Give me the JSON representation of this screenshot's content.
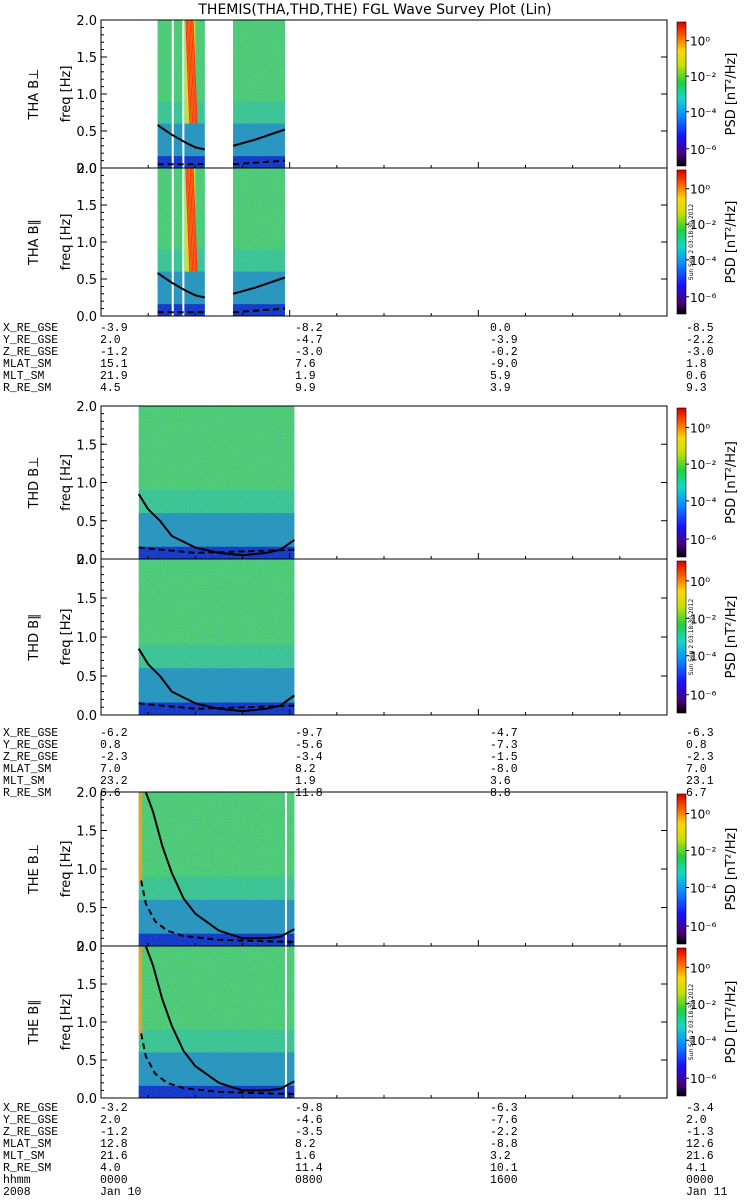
{
  "title": "THEMIS(THA,THD,THE) FGL Wave Survey Plot (Lin)",
  "colorbar": {
    "label": "PSD [nT²/Hz]",
    "ticks": [
      "10⁰",
      "10⁻²",
      "10⁻⁴",
      "10⁻⁶"
    ],
    "stamp": "Sun Sep 2 03:18:30 2012"
  },
  "panels": [
    {
      "id": "tha-bperp",
      "ylabel": "THA B⊥",
      "yunit": "freq [Hz]"
    },
    {
      "id": "tha-bpar",
      "ylabel": "THA B∥",
      "yunit": "freq [Hz]"
    },
    {
      "id": "thd-bperp",
      "ylabel": "THD B⊥",
      "yunit": "freq [Hz]"
    },
    {
      "id": "thd-bpar",
      "ylabel": "THD B∥",
      "yunit": "freq [Hz]"
    },
    {
      "id": "the-bperp",
      "ylabel": "THE B⊥",
      "yunit": "freq [Hz]"
    },
    {
      "id": "the-bpar",
      "ylabel": "THE B∥",
      "yunit": "freq [Hz]"
    }
  ],
  "yticks": [
    "2.0",
    "1.5",
    "1.0",
    "0.5",
    "0.0"
  ],
  "ephemeris": [
    {
      "rows": [
        [
          "X_RE_GSE",
          "-3.9",
          "-8.2",
          "0.0",
          "-8.5"
        ],
        [
          "Y_RE_GSE",
          "2.0",
          "-4.7",
          "-3.9",
          "-2.2"
        ],
        [
          "Z_RE_GSE",
          "-1.2",
          "-3.0",
          "-0.2",
          "-3.0"
        ],
        [
          "MLAT_SM",
          "15.1",
          "7.6",
          "-9.0",
          "1.8"
        ],
        [
          "MLT_SM",
          "21.9",
          "1.9",
          "5.9",
          "0.6"
        ],
        [
          "R_RE_SM",
          "4.5",
          "9.9",
          "3.9",
          "9.3"
        ]
      ]
    },
    {
      "rows": [
        [
          "X_RE_GSE",
          "-6.2",
          "-9.7",
          "-4.7",
          "-6.3"
        ],
        [
          "Y_RE_GSE",
          "0.8",
          "-5.6",
          "-7.3",
          "0.8"
        ],
        [
          "Z_RE_GSE",
          "-2.3",
          "-3.4",
          "-1.5",
          "-2.3"
        ],
        [
          "MLAT_SM",
          "7.0",
          "8.2",
          "-8.0",
          "7.0"
        ],
        [
          "MLT_SM",
          "23.2",
          "1.9",
          "3.6",
          "23.1"
        ],
        [
          "R_RE_SM",
          "6.6",
          "11.8",
          "8.8",
          "6.7"
        ]
      ]
    },
    {
      "rows": [
        [
          "X_RE_GSE",
          "-3.2",
          "-9.8",
          "-6.3",
          "-3.4"
        ],
        [
          "Y_RE_GSE",
          "2.0",
          "-4.6",
          "-7.6",
          "2.0"
        ],
        [
          "Z_RE_GSE",
          "-1.2",
          "-3.5",
          "-2.2",
          "-1.3"
        ],
        [
          "MLAT_SM",
          "12.8",
          "8.2",
          "-8.8",
          "12.6"
        ],
        [
          "MLT_SM",
          "21.6",
          "1.6",
          "3.2",
          "21.6"
        ],
        [
          "R_RE_SM",
          "4.0",
          "11.4",
          "10.1",
          "4.1"
        ]
      ]
    }
  ],
  "time_axis": {
    "row1": [
      "hhmm",
      "0000",
      "0800",
      "1600",
      "0000"
    ],
    "row2": [
      "2008",
      "Jan 10",
      "",
      "",
      "Jan 11"
    ]
  },
  "chart_data": {
    "type": "heatmap",
    "title": "THEMIS(THA,THD,THE) FGL Wave Survey Plot (Lin)",
    "x_unit": "hours since 2008-01-10 00:00",
    "xlim": [
      0,
      24
    ],
    "ylim": [
      0,
      2.0
    ],
    "ylabel": "freq [Hz]",
    "colorbar_label": "PSD [nT^2/Hz]",
    "colorbar_log_range": [
      -7,
      1
    ],
    "probes": [
      {
        "probe": "THA",
        "data_intervals": [
          [
            2.4,
            4.4
          ],
          [
            5.6,
            7.8
          ]
        ],
        "gaps": [
          [
            3.0,
            3.05
          ],
          [
            3.45,
            3.5
          ]
        ],
        "solid_curve": [
          [
            2.4,
            0.58
          ],
          [
            3.0,
            0.45
          ],
          [
            3.6,
            0.34
          ],
          [
            4.0,
            0.28
          ],
          [
            4.4,
            0.25
          ],
          [
            5.6,
            0.3
          ],
          [
            6.5,
            0.38
          ],
          [
            7.8,
            0.52
          ]
        ],
        "dashed_curve": [
          [
            2.4,
            0.05
          ],
          [
            4.4,
            0.05
          ],
          [
            5.6,
            0.05
          ],
          [
            7.8,
            0.1
          ]
        ]
      },
      {
        "probe": "THD",
        "data_intervals": [
          [
            1.6,
            8.2
          ]
        ],
        "gaps": [],
        "solid_curve": [
          [
            1.6,
            0.85
          ],
          [
            2.0,
            0.65
          ],
          [
            2.5,
            0.5
          ],
          [
            3.0,
            0.3
          ],
          [
            4.0,
            0.15
          ],
          [
            5.0,
            0.08
          ],
          [
            6.0,
            0.05
          ],
          [
            7.0,
            0.08
          ],
          [
            7.6,
            0.12
          ],
          [
            8.2,
            0.25
          ]
        ],
        "dashed_curve": [
          [
            1.6,
            0.15
          ],
          [
            4.0,
            0.08
          ],
          [
            8.2,
            0.12
          ]
        ]
      },
      {
        "probe": "THE",
        "data_intervals": [
          [
            1.6,
            8.2
          ]
        ],
        "gaps": [
          [
            7.8,
            7.85
          ]
        ],
        "solid_curve": [
          [
            1.9,
            2.0
          ],
          [
            2.2,
            1.75
          ],
          [
            2.6,
            1.3
          ],
          [
            3.0,
            0.95
          ],
          [
            3.5,
            0.62
          ],
          [
            4.0,
            0.42
          ],
          [
            5.0,
            0.2
          ],
          [
            6.0,
            0.1
          ],
          [
            7.0,
            0.1
          ],
          [
            7.6,
            0.12
          ],
          [
            8.2,
            0.22
          ]
        ],
        "dashed_curve": [
          [
            1.7,
            0.85
          ],
          [
            1.9,
            0.55
          ],
          [
            2.3,
            0.32
          ],
          [
            2.8,
            0.2
          ],
          [
            3.5,
            0.13
          ],
          [
            5.0,
            0.08
          ],
          [
            8.2,
            0.05
          ]
        ]
      }
    ]
  }
}
